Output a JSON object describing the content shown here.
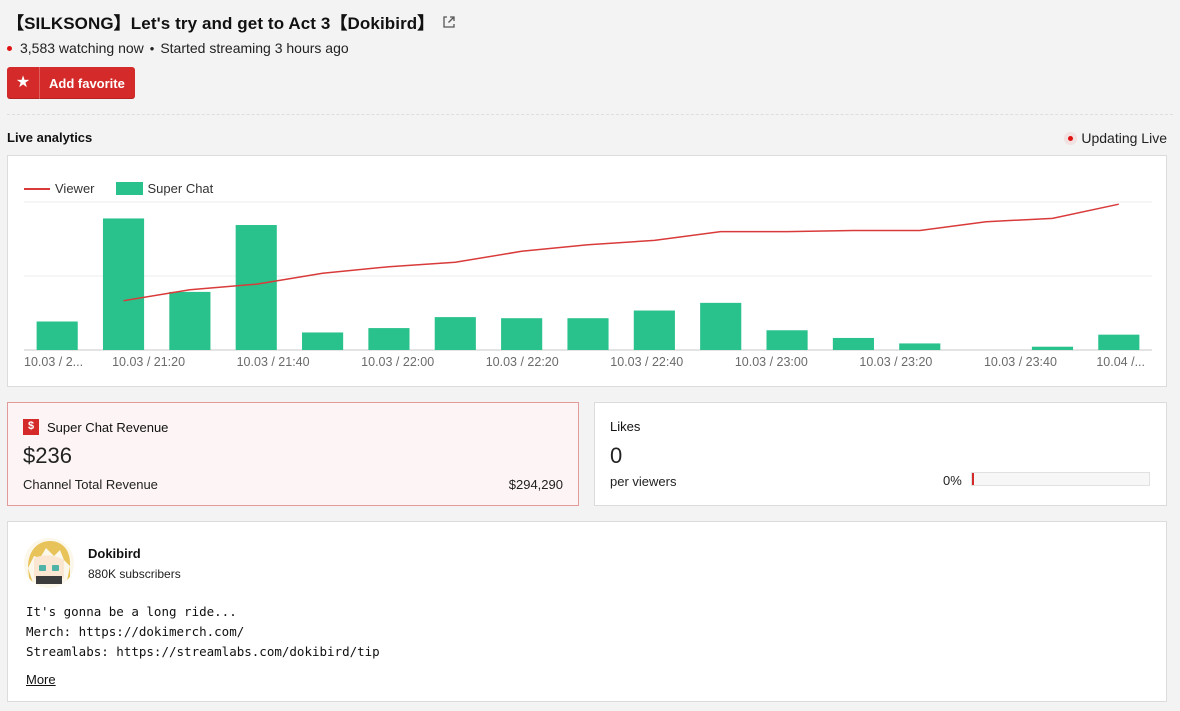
{
  "stream": {
    "title": "【SILKSONG】Let's try and get to Act 3【Dokibird】",
    "watching": "3,583 watching now",
    "started": "Started streaming 3 hours ago",
    "favorite_label": "Add favorite"
  },
  "analytics": {
    "title": "Live analytics",
    "updating": "Updating Live"
  },
  "chart_data": {
    "type": "bar",
    "x_tick_labels": [
      "10.03 / 2...",
      "10.03 / 21:20",
      "10.03 / 21:40",
      "10.03 / 22:00",
      "10.03 / 22:20",
      "10.03 / 22:40",
      "10.03 / 23:00",
      "10.03 / 23:20",
      "10.03 / 23:40",
      "10.04 /..."
    ],
    "series": [
      {
        "name": "Super Chat",
        "type": "bar",
        "values": [
          26,
          120,
          53,
          114,
          16,
          20,
          30,
          29,
          29,
          36,
          43,
          18,
          11,
          6,
          0,
          3,
          14
        ]
      },
      {
        "name": "Viewer",
        "type": "line",
        "values": [
          null,
          45,
          55,
          60,
          70,
          76,
          80,
          90,
          96,
          100,
          108,
          108,
          109,
          109,
          117,
          120,
          133
        ]
      }
    ],
    "legend_position": "top-left",
    "grid": true,
    "colors": {
      "Viewer": "#d93a3a",
      "Super Chat": "#2ac28c"
    }
  },
  "super_chat": {
    "title": "Super Chat Revenue",
    "icon": "$",
    "amount": "$236",
    "total_label": "Channel Total Revenue",
    "total_value": "$294,290"
  },
  "likes": {
    "title": "Likes",
    "count": "0",
    "per_label": "per viewers",
    "percent_text": "0%",
    "percent_value": 0
  },
  "channel": {
    "name": "Dokibird",
    "subscribers": "880K subscribers",
    "description": "It's gonna be a long ride...\nMerch: https://dokimerch.com/\nStreamlabs: https://streamlabs.com/dokibird/tip",
    "more_label": "More"
  },
  "colors": {
    "accent": "#d42a2a",
    "bar": "#2ac28c",
    "line": "#d93a3a"
  }
}
